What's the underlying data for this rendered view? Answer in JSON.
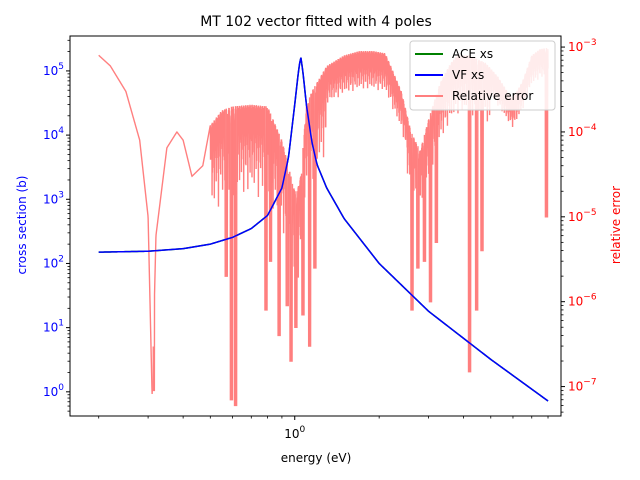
{
  "chart_data": {
    "type": "line",
    "title": "MT 102 vector fitted with 4 poles",
    "xlabel": "energy (eV)",
    "ylabel_left": "cross section (b)",
    "ylabel_right": "relative error",
    "x_scale": "log",
    "y_scale_left": "log",
    "y_scale_right": "log",
    "xlim": [
      0.158,
      8.9
    ],
    "ylim_left": [
      0.42,
      350000
    ],
    "ylim_right": [
      4.5e-08,
      0.00135
    ],
    "x_ticks": [
      {
        "value": 1,
        "label": "10^0"
      }
    ],
    "y_ticks_left": [
      {
        "value": 1,
        "label": "10^0"
      },
      {
        "value": 10,
        "label": "10^1"
      },
      {
        "value": 100,
        "label": "10^2"
      },
      {
        "value": 1000,
        "label": "10^3"
      },
      {
        "value": 10000,
        "label": "10^4"
      },
      {
        "value": 100000,
        "label": "10^5"
      }
    ],
    "y_ticks_right": [
      {
        "value": 1e-07,
        "label": "10^−7"
      },
      {
        "value": 1e-06,
        "label": "10^−6"
      },
      {
        "value": 1e-05,
        "label": "10^−5"
      },
      {
        "value": 0.0001,
        "label": "10^−4"
      },
      {
        "value": 0.001,
        "label": "10^−3"
      }
    ],
    "legend_position": "top-right",
    "legend": [
      "ACE xs",
      "VF xs",
      "Relative error"
    ],
    "colors": {
      "ace": "#008000",
      "vf": "#0000ff",
      "error": "#ff7f7f",
      "left_axis": "#0000ff",
      "right_axis": "#ff0000"
    },
    "series": [
      {
        "name": "ACE xs",
        "axis": "left",
        "x": [
          0.2,
          0.3,
          0.4,
          0.5,
          0.6,
          0.7,
          0.8,
          0.9,
          0.95,
          1.0,
          1.03,
          1.05,
          1.07,
          1.1,
          1.15,
          1.2,
          1.3,
          1.5,
          2.0,
          3.0,
          5.0,
          8.0
        ],
        "y": [
          150,
          155,
          170,
          200,
          255,
          350,
          560,
          1500,
          4500,
          30000,
          95000,
          170000,
          95000,
          30000,
          8000,
          3500,
          1500,
          500,
          100,
          18,
          3.2,
          0.72
        ]
      },
      {
        "name": "VF xs",
        "axis": "left",
        "x": [
          0.2,
          0.3,
          0.4,
          0.5,
          0.6,
          0.7,
          0.8,
          0.9,
          0.95,
          1.0,
          1.03,
          1.05,
          1.07,
          1.1,
          1.15,
          1.2,
          1.3,
          1.5,
          2.0,
          3.0,
          5.0,
          8.0
        ],
        "y": [
          150,
          155,
          170,
          200,
          255,
          350,
          560,
          1500,
          4500,
          30000,
          95000,
          170000,
          95000,
          30000,
          8000,
          3500,
          1500,
          500,
          100,
          18,
          3.2,
          0.72
        ]
      },
      {
        "name": "Relative error",
        "axis": "right",
        "envelope_x": [
          0.2,
          0.22,
          0.25,
          0.28,
          0.3,
          0.31,
          0.32,
          0.35,
          0.38,
          0.4,
          0.43,
          0.47,
          0.5,
          0.55,
          0.6,
          0.7,
          0.8,
          0.9,
          1.0,
          1.02,
          1.05,
          1.1,
          1.15,
          1.3,
          1.5,
          1.7,
          1.9,
          2.1,
          2.2,
          2.4,
          2.6,
          2.8,
          3.0,
          3.3,
          3.6,
          3.8,
          4.2,
          4.8,
          5.3,
          5.8,
          6.0,
          6.5,
          7.0,
          7.5,
          8.0
        ],
        "envelope_y": [
          0.0008,
          0.0006,
          0.0003,
          8e-05,
          1e-05,
          8e-08,
          6e-06,
          6.5e-05,
          0.0001,
          8e-05,
          3e-05,
          4e-05,
          0.00012,
          0.00018,
          0.0002,
          0.00021,
          0.0002,
          8e-05,
          2e-05,
          2e-05,
          3e-05,
          0.0002,
          0.0003,
          0.0006,
          0.0008,
          0.0009,
          0.0009,
          0.00085,
          0.0006,
          0.0003,
          0.0001,
          6e-05,
          0.00014,
          0.00038,
          0.00065,
          0.0008,
          0.0008,
          0.00065,
          0.00045,
          0.00028,
          0.00025,
          0.0004,
          0.0008,
          0.00095,
          0.00098
        ],
        "dips": [
          {
            "x": 0.313,
            "y": 9e-08
          },
          {
            "x": 0.57,
            "y": 2e-06
          },
          {
            "x": 0.595,
            "y": 7e-08
          },
          {
            "x": 0.615,
            "y": 6e-08
          },
          {
            "x": 0.79,
            "y": 8e-07
          },
          {
            "x": 0.82,
            "y": 3e-06
          },
          {
            "x": 0.88,
            "y": 4e-07
          },
          {
            "x": 0.94,
            "y": 9e-07
          },
          {
            "x": 0.97,
            "y": 2e-07
          },
          {
            "x": 1.01,
            "y": 5e-07
          },
          {
            "x": 1.07,
            "y": 7e-07
          },
          {
            "x": 1.13,
            "y": 3e-07
          },
          {
            "x": 1.18,
            "y": 2.5e-06
          },
          {
            "x": 2.62,
            "y": 8e-07
          },
          {
            "x": 2.75,
            "y": 2.5e-06
          },
          {
            "x": 2.9,
            "y": 3e-06
          },
          {
            "x": 3.05,
            "y": 1e-06
          },
          {
            "x": 3.2,
            "y": 5e-06
          },
          {
            "x": 4.2,
            "y": 1.5e-07
          },
          {
            "x": 4.45,
            "y": 8e-07
          },
          {
            "x": 4.65,
            "y": 4e-06
          },
          {
            "x": 7.9,
            "y": 1e-05
          }
        ]
      }
    ]
  }
}
